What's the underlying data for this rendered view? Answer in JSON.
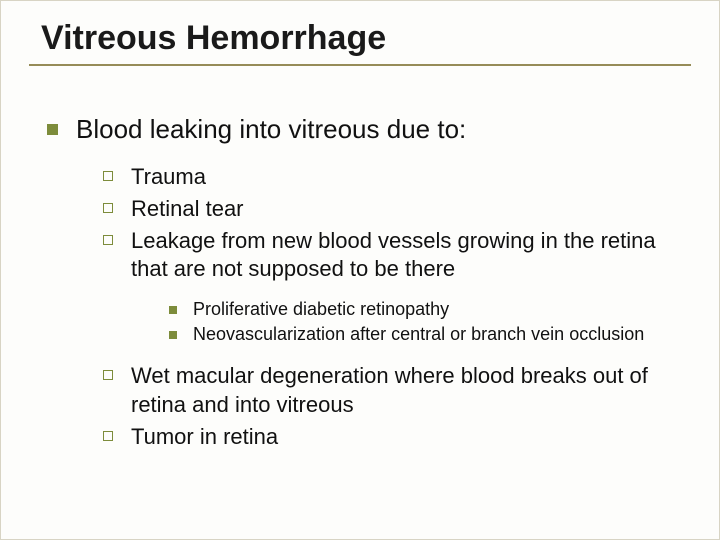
{
  "colors": {
    "background": "#fdfdfb",
    "rule": "#968c58",
    "bullet": "#7d8c3b",
    "text": "#111111",
    "title": "#1a1a1a"
  },
  "typography": {
    "title_fontsize": 34,
    "lvl1_fontsize": 26,
    "lvl2_fontsize": 22,
    "lvl3_fontsize": 18,
    "font_family": "Arial"
  },
  "slide": {
    "title": "Vitreous Hemorrhage",
    "lvl1": "Blood leaking into vitreous due to:",
    "causes": {
      "c0": "Trauma",
      "c1": "Retinal tear",
      "c2": "Leakage from new blood vessels growing in the retina that are not supposed to be there",
      "c3": "Wet macular degeneration where blood breaks out of retina and into vitreous",
      "c4": "Tumor in retina"
    },
    "sub": {
      "s0": "Proliferative diabetic retinopathy",
      "s1": "Neovascularization after central or branch vein occlusion"
    }
  }
}
